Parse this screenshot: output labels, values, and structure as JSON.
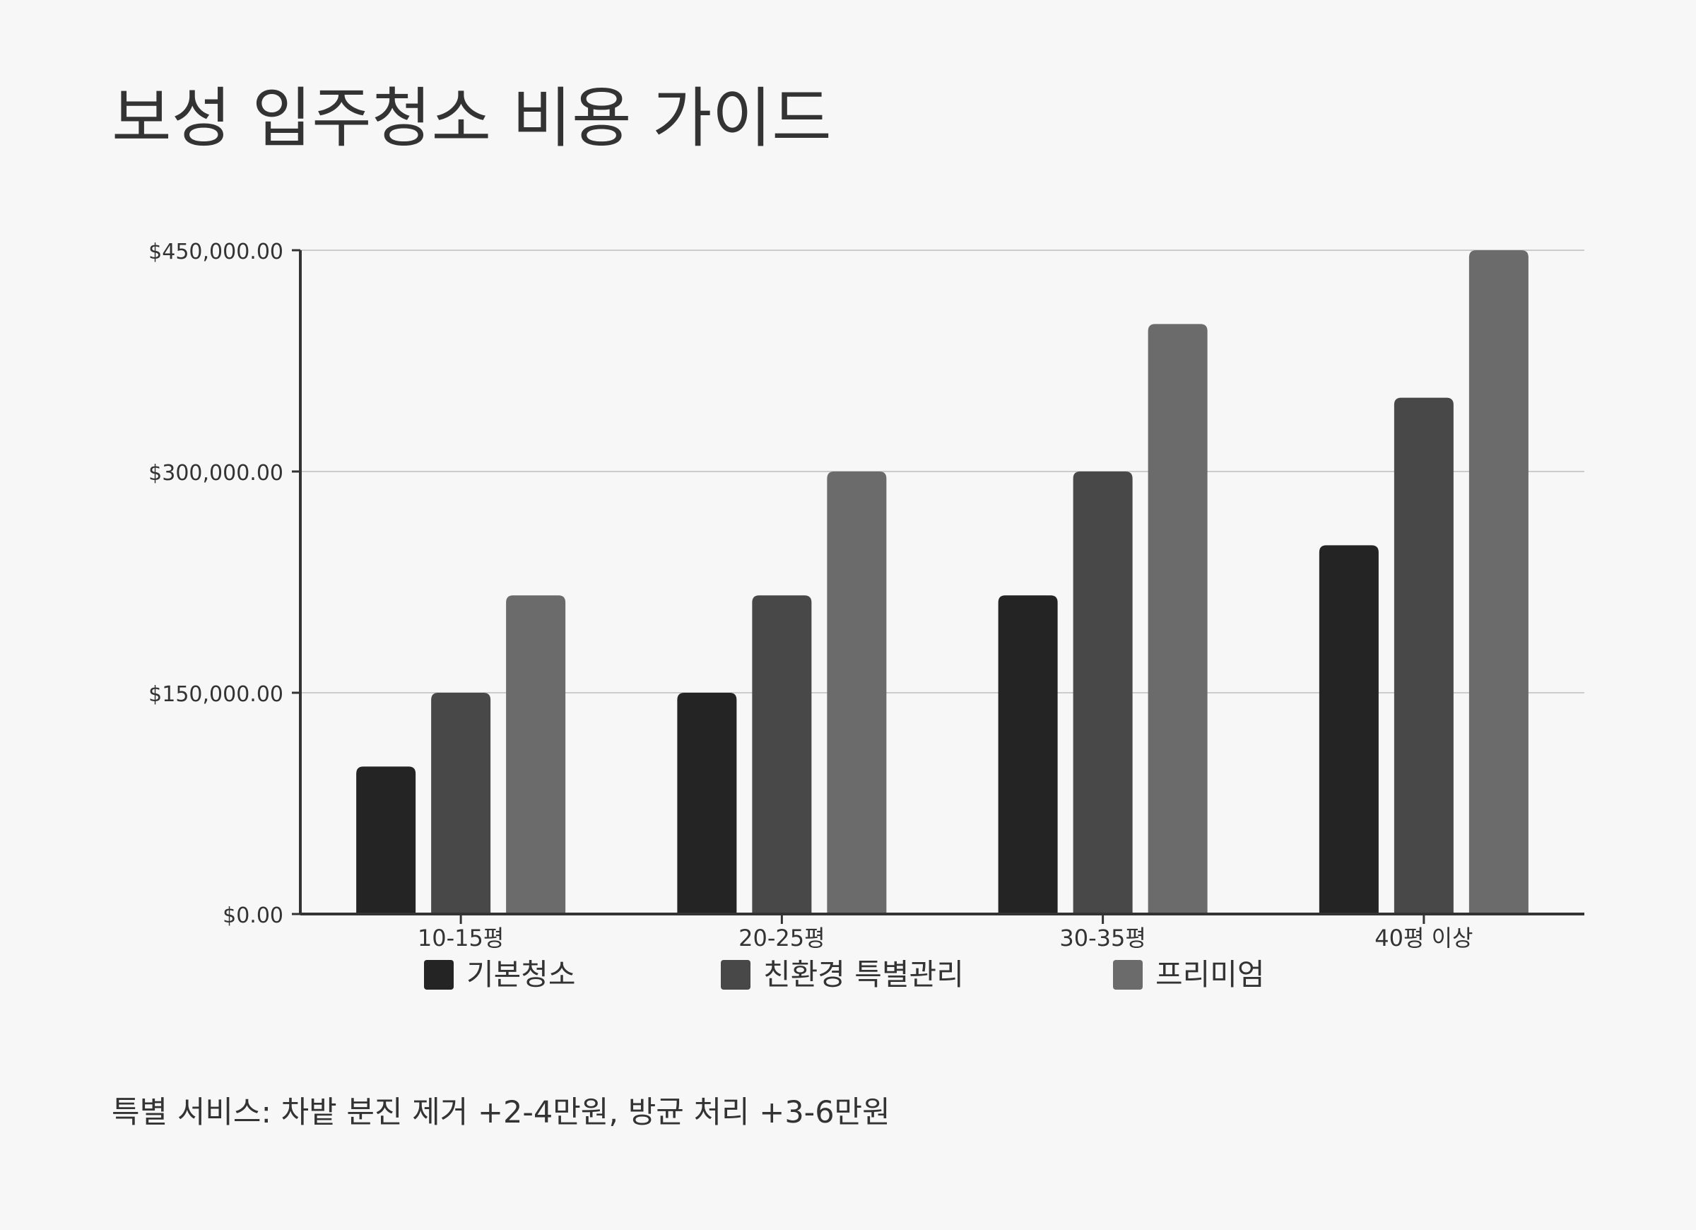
{
  "title": "보성 입주청소 비용 가이드",
  "note": "특별 서비스: 차밭 분진 제거 +2-4만원, 방균 처리 +3-6만원",
  "chart_data": {
    "type": "bar",
    "title": "보성 입주청소 비용 가이드",
    "xlabel": "",
    "ylabel": "",
    "categories": [
      "10-15평",
      "20-25평",
      "30-35평",
      "40평 이상"
    ],
    "series": [
      {
        "name": "기본청소",
        "color": "#242424",
        "values": [
          100000,
          150000,
          216000,
          250000
        ]
      },
      {
        "name": "친환경 특별관리",
        "color": "#484848",
        "values": [
          150000,
          216000,
          300000,
          350000
        ]
      },
      {
        "name": "프리미엄",
        "color": "#6b6b6b",
        "values": [
          216000,
          300000,
          400000,
          450000
        ]
      }
    ],
    "ylim": [
      0,
      450000
    ],
    "yticks": [
      0,
      150000,
      300000,
      450000
    ],
    "ytick_labels": [
      "$0.00",
      "$150,000.00",
      "$300,000.00",
      "$450,000.00"
    ],
    "grid": true,
    "legend_position": "bottom"
  }
}
